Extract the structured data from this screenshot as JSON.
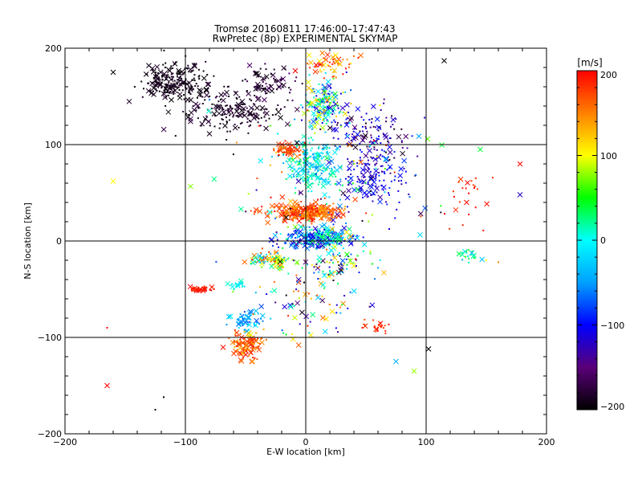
{
  "chart_data": {
    "type": "scatter",
    "title_line1": "Tromsø 20160811 17:46:00–17:47:43",
    "title_line2": "RwPretec (8p) EXPERIMENTAL SKYMAP",
    "xlabel": "E-W location [km]",
    "ylabel": "N-S location [km]",
    "xlim": [
      -200,
      200
    ],
    "ylim": [
      -200,
      200
    ],
    "xticks": [
      "−200",
      "−100",
      "0",
      "100",
      "200"
    ],
    "yticks": [
      "−200",
      "−100",
      "0",
      "100",
      "200"
    ],
    "grid": true,
    "grid_values": [
      -100,
      0,
      100
    ],
    "markers": [
      "dot",
      "x"
    ],
    "colorbar": {
      "label": "[m/s]",
      "range": [
        -200,
        200
      ],
      "ticks": [
        "−200",
        "−100",
        "0",
        "100",
        "200"
      ],
      "colors": [
        "#000000",
        "#5a0078",
        "#0000ff",
        "#00a0ff",
        "#00ffff",
        "#00ff00",
        "#ffff00",
        "#ff8000",
        "#ff0000"
      ]
    },
    "clusters": [
      {
        "cx": -110,
        "cy": 165,
        "sx": 22,
        "sy": 18,
        "n": 220,
        "vmin": -200,
        "vmax": -180
      },
      {
        "cx": -60,
        "cy": 135,
        "sx": 35,
        "sy": 20,
        "n": 200,
        "vmin": -200,
        "vmax": -170
      },
      {
        "cx": -30,
        "cy": 165,
        "sx": 18,
        "sy": 15,
        "n": 70,
        "vmin": -200,
        "vmax": -150
      },
      {
        "cx": 15,
        "cy": 140,
        "sx": 14,
        "sy": 20,
        "n": 180,
        "vmin": -130,
        "vmax": 130
      },
      {
        "cx": 20,
        "cy": 185,
        "sx": 20,
        "sy": 10,
        "n": 60,
        "vmin": 100,
        "vmax": 200
      },
      {
        "cx": 50,
        "cy": 110,
        "sx": 25,
        "sy": 25,
        "n": 120,
        "vmin": -200,
        "vmax": -90
      },
      {
        "cx": 55,
        "cy": 65,
        "sx": 25,
        "sy": 25,
        "n": 140,
        "vmin": -140,
        "vmax": -80
      },
      {
        "cx": 5,
        "cy": 80,
        "sx": 18,
        "sy": 22,
        "n": 220,
        "vmin": -60,
        "vmax": 40
      },
      {
        "cx": -15,
        "cy": 95,
        "sx": 10,
        "sy": 6,
        "n": 60,
        "vmin": 150,
        "vmax": 200
      },
      {
        "cx": 0,
        "cy": 30,
        "sx": 25,
        "sy": 7,
        "n": 320,
        "vmin": 130,
        "vmax": 200
      },
      {
        "cx": 10,
        "cy": 3,
        "sx": 25,
        "sy": 10,
        "n": 280,
        "vmin": -140,
        "vmax": 40
      },
      {
        "cx": -30,
        "cy": -20,
        "sx": 15,
        "sy": 6,
        "n": 80,
        "vmin": -60,
        "vmax": 200
      },
      {
        "cx": 25,
        "cy": -25,
        "sx": 22,
        "sy": 12,
        "n": 70,
        "vmin": -200,
        "vmax": 200
      },
      {
        "cx": -87,
        "cy": -50,
        "sx": 8,
        "sy": 3,
        "n": 45,
        "vmin": 180,
        "vmax": 200
      },
      {
        "cx": -58,
        "cy": -46,
        "sx": 6,
        "sy": 3,
        "n": 20,
        "vmin": -20,
        "vmax": 20
      },
      {
        "cx": -50,
        "cy": -108,
        "sx": 12,
        "sy": 12,
        "n": 120,
        "vmin": 120,
        "vmax": 200
      },
      {
        "cx": -50,
        "cy": -83,
        "sx": 10,
        "sy": 8,
        "n": 60,
        "vmin": -80,
        "vmax": 0
      },
      {
        "cx": 60,
        "cy": -88,
        "sx": 8,
        "sy": 6,
        "n": 25,
        "vmin": 170,
        "vmax": 200
      },
      {
        "cx": 135,
        "cy": -15,
        "sx": 10,
        "sy": 6,
        "n": 18,
        "vmin": -40,
        "vmax": 60
      },
      {
        "cx": 130,
        "cy": 40,
        "sx": 20,
        "sy": 25,
        "n": 25,
        "vmin": 170,
        "vmax": 200
      },
      {
        "cx": 0,
        "cy": -60,
        "sx": 45,
        "sy": 40,
        "n": 90,
        "vmin": -200,
        "vmax": 200
      },
      {
        "cx": 20,
        "cy": 50,
        "sx": 80,
        "sy": 80,
        "n": 120,
        "vmin": -200,
        "vmax": 200
      }
    ],
    "points": [
      {
        "x": -160,
        "y": 62,
        "v": 100,
        "m": "x"
      },
      {
        "x": -165,
        "y": -150,
        "v": 200,
        "m": "x"
      },
      {
        "x": -165,
        "y": -90,
        "v": 200,
        "m": "dot"
      },
      {
        "x": -118,
        "y": -162,
        "v": -200,
        "m": "dot"
      },
      {
        "x": -125,
        "y": -175,
        "v": -200,
        "m": "dot"
      },
      {
        "x": 75,
        "y": -125,
        "v": -40,
        "m": "x"
      },
      {
        "x": 90,
        "y": -135,
        "v": 80,
        "m": "x"
      },
      {
        "x": 102,
        "y": -112,
        "v": -200,
        "m": "x"
      },
      {
        "x": 178,
        "y": 48,
        "v": -120,
        "m": "x"
      },
      {
        "x": 178,
        "y": 80,
        "v": 200,
        "m": "x"
      },
      {
        "x": 145,
        "y": 95,
        "v": 40,
        "m": "x"
      },
      {
        "x": 115,
        "y": 187,
        "v": -200,
        "m": "x"
      },
      {
        "x": -160,
        "y": 175,
        "v": -200,
        "m": "x"
      },
      {
        "x": 150,
        "y": -20,
        "v": 100,
        "m": "dot"
      },
      {
        "x": 160,
        "y": -22,
        "v": 150,
        "m": "dot"
      },
      {
        "x": 140,
        "y": 55,
        "v": 200,
        "m": "dot"
      }
    ]
  }
}
